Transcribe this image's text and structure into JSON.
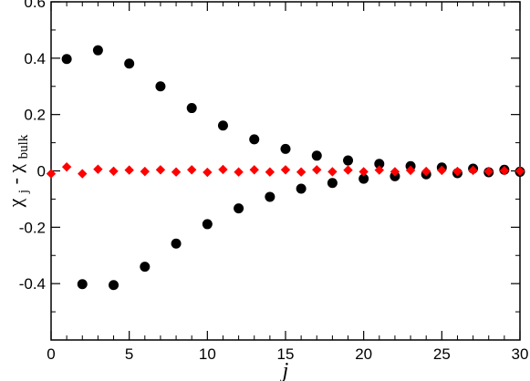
{
  "chart_data": {
    "type": "scatter",
    "title": "",
    "xlabel": "j",
    "ylabel": {
      "main": "χ",
      "sub1": "j",
      "dash": " - ",
      "main2": "χ",
      "sub2": "bulk"
    },
    "xlim": [
      0,
      30
    ],
    "ylim": [
      -0.6,
      0.6
    ],
    "x_ticks": [
      0,
      5,
      10,
      15,
      20,
      25,
      30
    ],
    "y_ticks": [
      -0.4,
      -0.2,
      0,
      0.2,
      0.4,
      0.6
    ],
    "x_tick_labels": [
      "0",
      "5",
      "10",
      "15",
      "20",
      "25",
      "30"
    ],
    "y_tick_labels": [
      "-0.4",
      "-0.2",
      "0",
      "0.2",
      "0.4",
      "0.6"
    ],
    "grid": false,
    "legend": "none",
    "series": [
      {
        "marker": "circle",
        "color": "#000000",
        "points": [
          [
            1,
            0.397
          ],
          [
            2,
            -0.402
          ],
          [
            3,
            0.428
          ],
          [
            4,
            -0.405
          ],
          [
            5,
            0.381
          ],
          [
            6,
            -0.34
          ],
          [
            7,
            0.3
          ],
          [
            8,
            -0.258
          ],
          [
            9,
            0.223
          ],
          [
            10,
            -0.189
          ],
          [
            11,
            0.161
          ],
          [
            12,
            -0.133
          ],
          [
            13,
            0.112
          ],
          [
            14,
            -0.092
          ],
          [
            15,
            0.078
          ],
          [
            16,
            -0.063
          ],
          [
            17,
            0.054
          ],
          [
            18,
            -0.043
          ],
          [
            19,
            0.037
          ],
          [
            20,
            -0.028
          ],
          [
            21,
            0.025
          ],
          [
            22,
            -0.019
          ],
          [
            23,
            0.017
          ],
          [
            24,
            -0.012
          ],
          [
            25,
            0.012
          ],
          [
            26,
            -0.008
          ],
          [
            27,
            0.008
          ],
          [
            28,
            -0.005
          ],
          [
            29,
            0.004
          ],
          [
            30,
            -0.003
          ]
        ]
      },
      {
        "marker": "diamond",
        "color": "#ff0000",
        "points": [
          [
            0,
            -0.01
          ],
          [
            1,
            0.014
          ],
          [
            2,
            -0.01
          ],
          [
            3,
            0.006
          ],
          [
            4,
            -0.001
          ],
          [
            5,
            0.003
          ],
          [
            6,
            -0.002
          ],
          [
            7,
            0.004
          ],
          [
            8,
            -0.004
          ],
          [
            9,
            0.004
          ],
          [
            10,
            -0.005
          ],
          [
            11,
            0.005
          ],
          [
            12,
            -0.004
          ],
          [
            13,
            0.004
          ],
          [
            14,
            -0.004
          ],
          [
            15,
            0.004
          ],
          [
            16,
            -0.004
          ],
          [
            17,
            0.004
          ],
          [
            18,
            -0.003
          ],
          [
            19,
            0.003
          ],
          [
            20,
            -0.003
          ],
          [
            21,
            0.003
          ],
          [
            22,
            -0.003
          ],
          [
            23,
            0.002
          ],
          [
            24,
            -0.002
          ],
          [
            25,
            0.002
          ],
          [
            26,
            -0.002
          ],
          [
            27,
            0.002
          ],
          [
            28,
            -0.002
          ],
          [
            29,
            0.001
          ],
          [
            30,
            -0.001
          ]
        ]
      }
    ]
  }
}
